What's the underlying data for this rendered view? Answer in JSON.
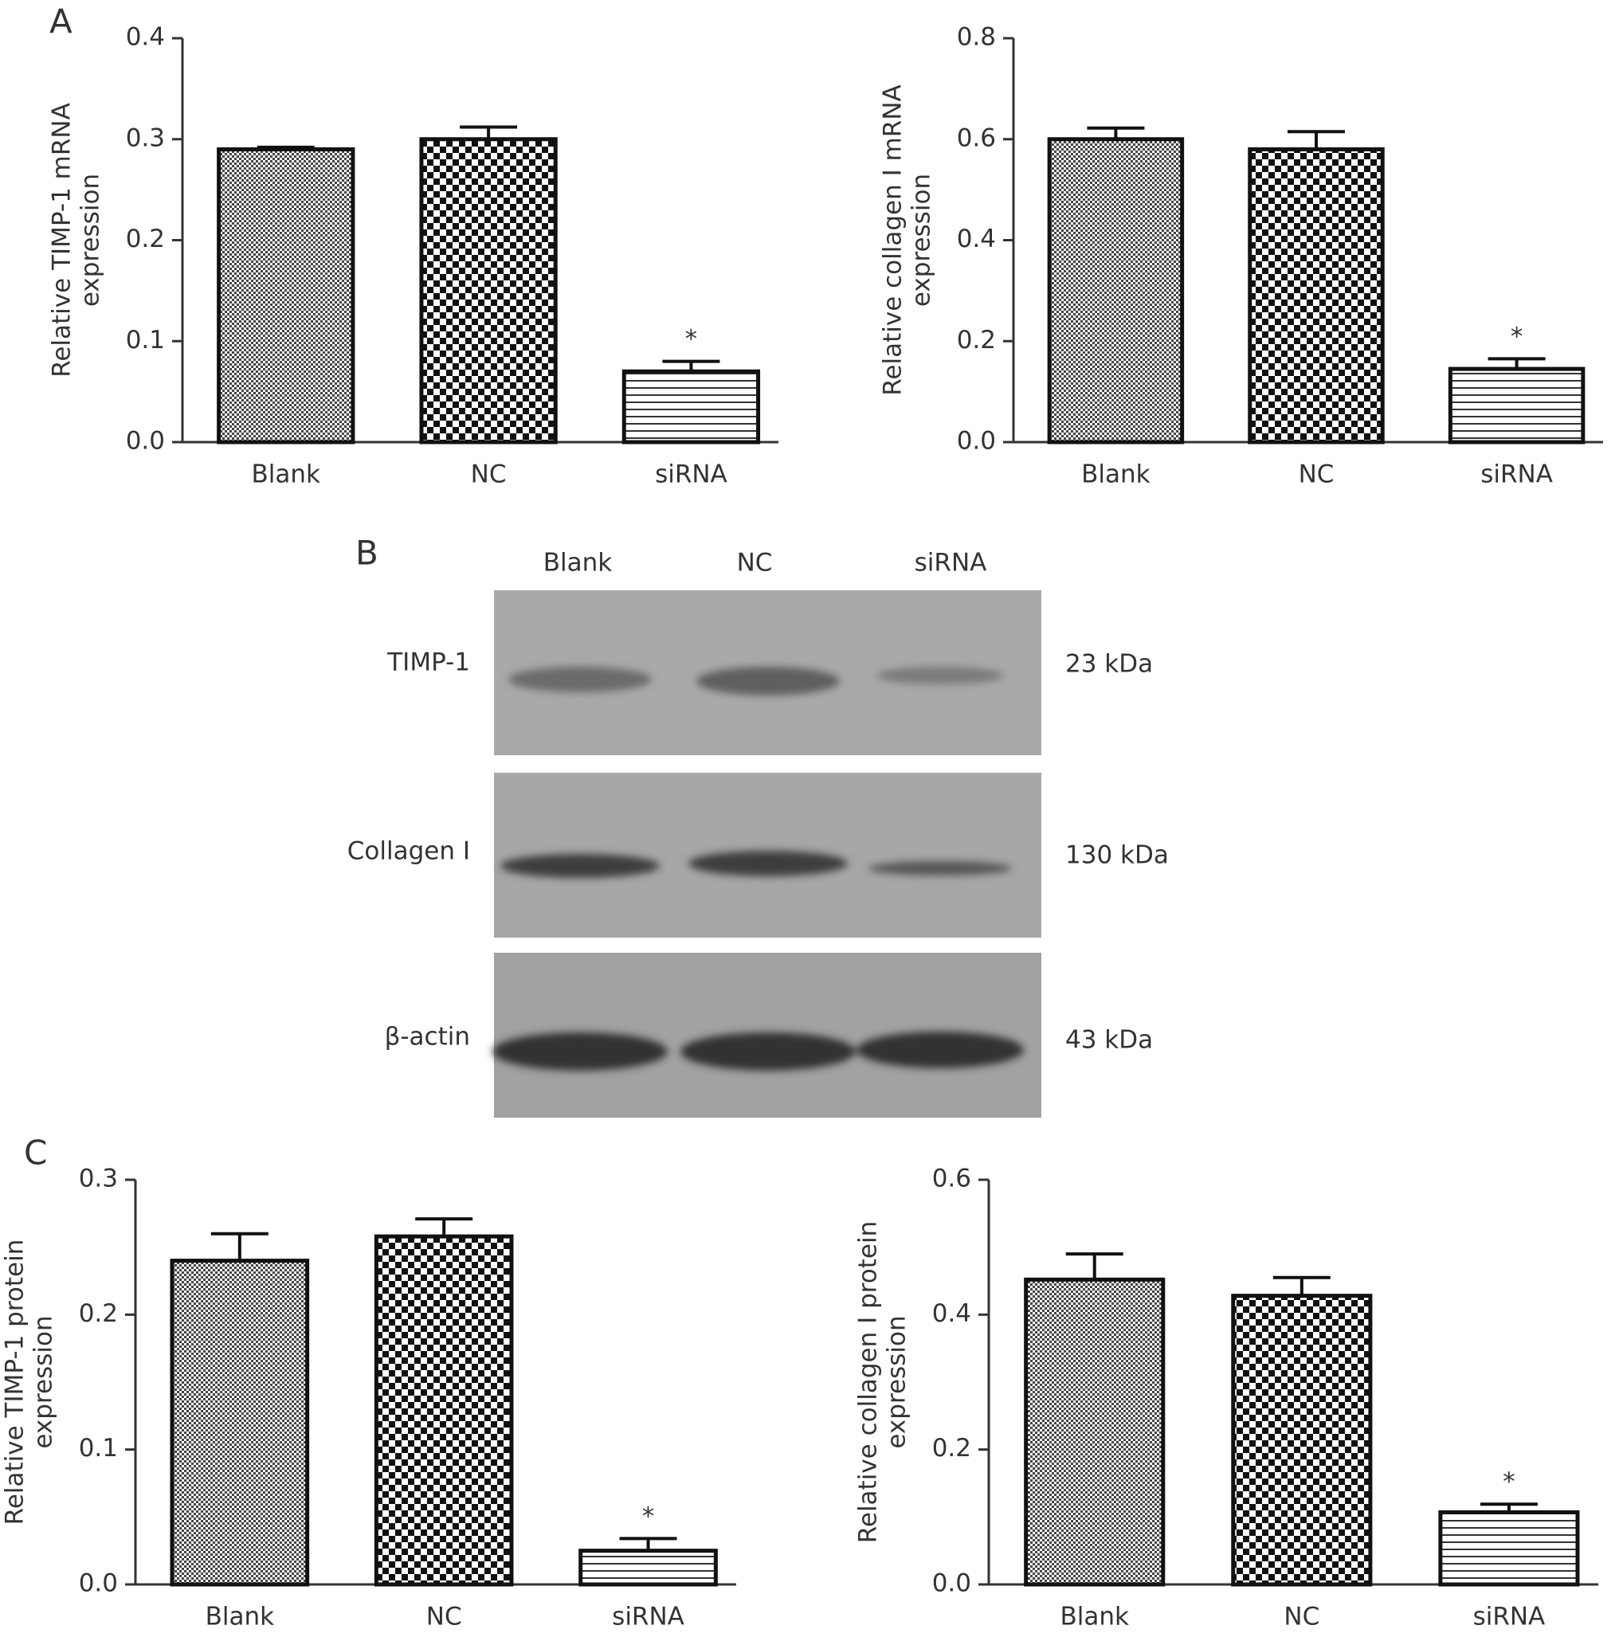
{
  "chart_data": [
    {
      "type": "bar",
      "panel_label": "A",
      "ylabel": [
        "Relative TIMP-1 mRNA",
        "expression"
      ],
      "categories": [
        "Blank",
        "NC",
        "siRNA"
      ],
      "values": [
        0.29,
        0.3,
        0.07
      ],
      "errors": [
        0.002,
        0.012,
        0.01
      ],
      "patterns": [
        "fine",
        "checker",
        "hlines"
      ],
      "annotations": [
        null,
        null,
        "*"
      ],
      "ylim": [
        0,
        0.4
      ],
      "yticks": [
        {
          "value": 0,
          "label": "0.0"
        },
        0.1,
        0.2,
        0.3,
        0.4
      ]
    },
    {
      "type": "bar",
      "ylabel": [
        "Relative collagen I mRNA",
        "expression"
      ],
      "categories": [
        "Blank",
        "NC",
        "siRNA"
      ],
      "values": [
        0.6,
        0.58,
        0.145
      ],
      "errors": [
        0.022,
        0.035,
        0.02
      ],
      "patterns": [
        "fine",
        "checker",
        "hlines"
      ],
      "annotations": [
        null,
        null,
        "*"
      ],
      "ylim": [
        0,
        0.8
      ],
      "yticks": [
        {
          "value": 0,
          "label": "0.0"
        },
        0.2,
        0.4,
        0.6,
        0.8
      ]
    },
    {
      "type": "bar",
      "panel_label": "C",
      "ylabel": [
        "Relative TIMP-1 protein",
        "expression"
      ],
      "categories": [
        "Blank",
        "NC",
        "siRNA"
      ],
      "values": [
        0.24,
        0.258,
        0.025
      ],
      "errors": [
        0.02,
        0.013,
        0.009
      ],
      "patterns": [
        "fine",
        "checker",
        "hlines"
      ],
      "annotations": [
        null,
        null,
        "*"
      ],
      "ylim": [
        0,
        0.3
      ],
      "yticks": [
        {
          "value": 0,
          "label": "0.0"
        },
        0.1,
        0.2,
        0.3
      ]
    },
    {
      "type": "bar",
      "ylabel": [
        "Relative collagen I protein",
        "expression"
      ],
      "categories": [
        "Blank",
        "NC",
        "siRNA"
      ],
      "values": [
        0.452,
        0.428,
        0.107
      ],
      "errors": [
        0.038,
        0.027,
        0.012
      ],
      "patterns": [
        "fine",
        "checker",
        "hlines"
      ],
      "annotations": [
        null,
        null,
        "*"
      ],
      "ylim": [
        0,
        0.6
      ],
      "yticks": [
        {
          "value": 0,
          "label": "0.0"
        },
        0.2,
        0.4,
        0.6
      ]
    }
  ],
  "blot": {
    "panel_label": "B",
    "lanes": [
      "Blank",
      "NC",
      "siRNA"
    ],
    "rows": [
      {
        "label": "TIMP-1",
        "size": "23 kDa"
      },
      {
        "label": "Collagen I",
        "size": "130 kDa"
      },
      {
        "label": "β-actin",
        "size": "43 kDa"
      }
    ]
  }
}
